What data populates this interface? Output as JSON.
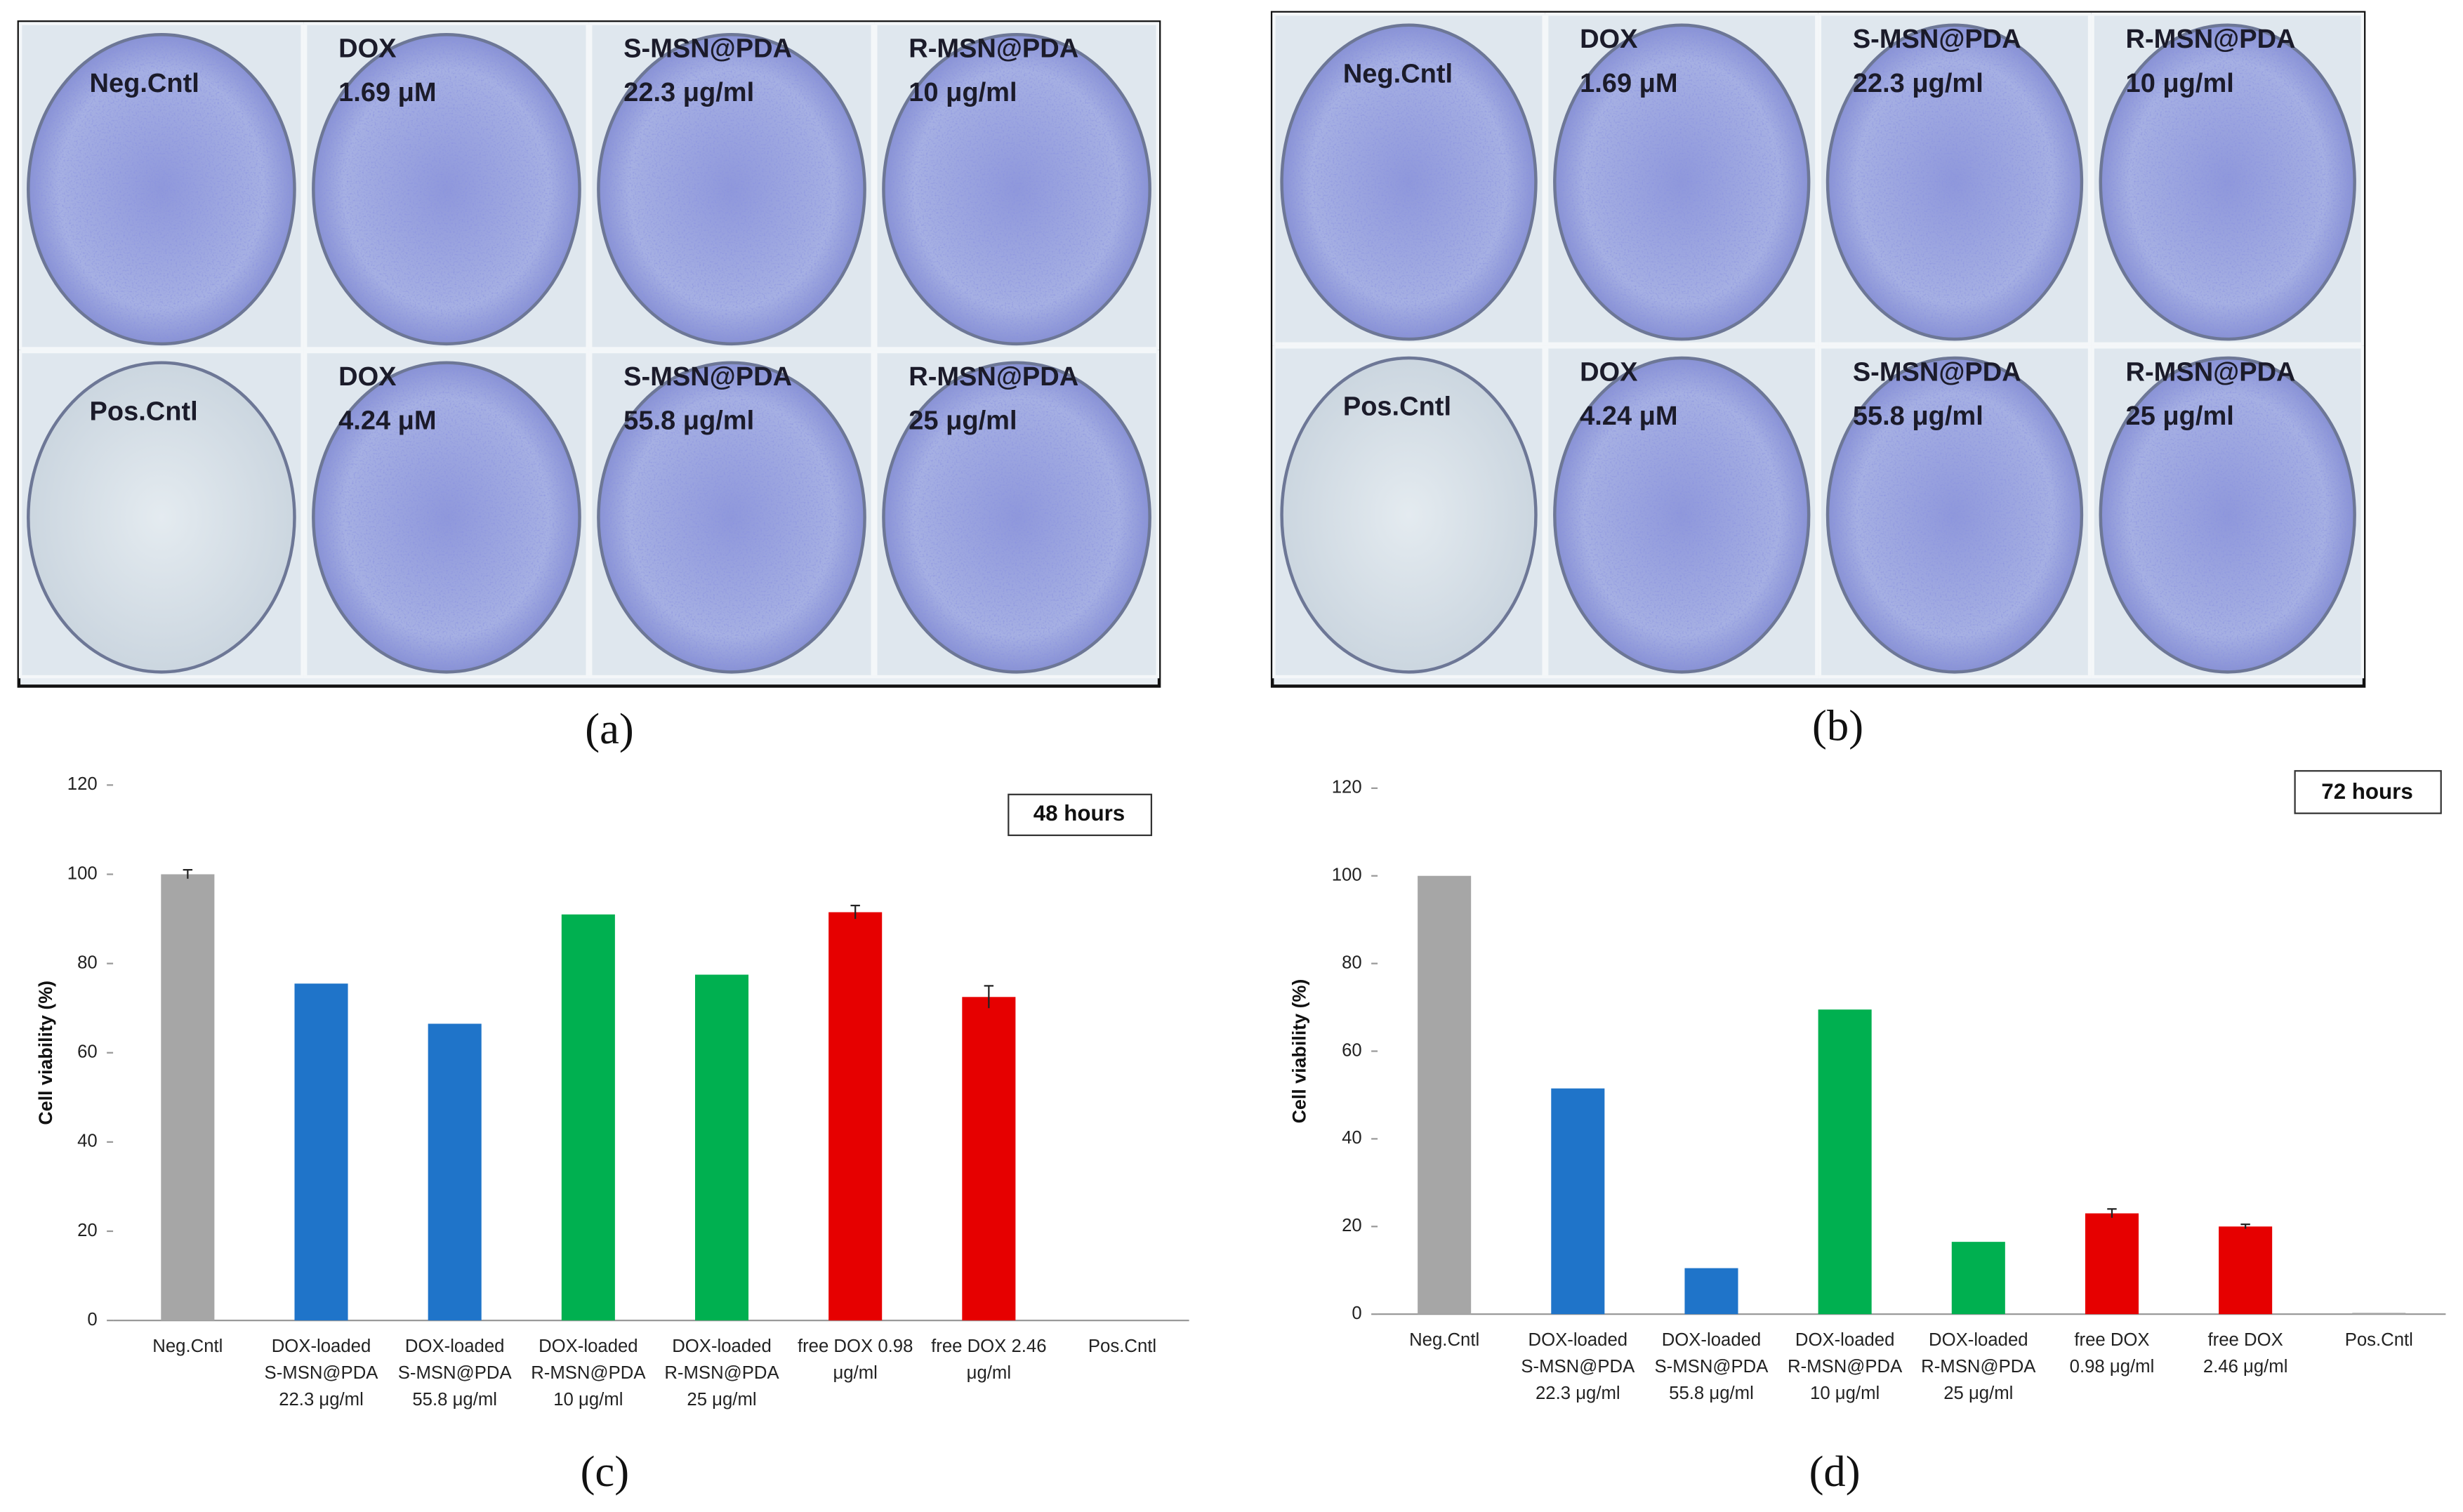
{
  "photos": [
    {
      "caption": "(a)",
      "wells": [
        "Neg.Cntl",
        "DOX\n1.69 μM",
        "S-MSN@PDA\n22.3 μg/ml",
        "R-MSN@PDA\n10 μg/ml",
        "Pos.Cntl",
        "DOX\n4.24 μM",
        "S-MSN@PDA\n55.8 μg/ml",
        "R-MSN@PDA\n25 μg/ml"
      ]
    },
    {
      "caption": "(b)",
      "wells": [
        "Neg.Cntl",
        "DOX\n1.69 μM",
        "S-MSN@PDA\n22.3 μg/ml",
        "R-MSN@PDA\n10 μg/ml",
        "Pos.Cntl",
        "DOX\n4.24 μM",
        "S-MSN@PDA\n55.8 μg/ml",
        "R-MSN@PDA\n25 μg/ml"
      ]
    }
  ],
  "chart_data": [
    {
      "type": "bar",
      "caption": "(c)",
      "annotation": "48 hours",
      "ylabel": "Cell viability (%)",
      "categories": [
        "Neg.Cntl",
        "DOX-loaded\nS-MSN@PDA\n22.3 μg/ml",
        "DOX-loaded\nS-MSN@PDA\n55.8 μg/ml",
        "DOX-loaded\nR-MSN@PDA\n10 μg/ml",
        "DOX-loaded\nR-MSN@PDA\n25 μg/ml",
        "free DOX 0.98\nμg/ml",
        "free DOX 2.46\nμg/ml",
        "Pos.Cntl"
      ],
      "values": [
        100,
        75.5,
        66.5,
        91,
        77.5,
        91.5,
        72.5,
        0
      ],
      "errors": [
        1,
        null,
        null,
        null,
        null,
        1.5,
        2.5,
        null
      ],
      "colors": [
        "#a6a6a6",
        "#1f74c9",
        "#1f74c9",
        "#00b050",
        "#00b050",
        "#e60000",
        "#e60000",
        "#a6a6a6"
      ],
      "ylim": [
        0,
        120
      ],
      "yticks": [
        0,
        20,
        40,
        60,
        80,
        100,
        120
      ]
    },
    {
      "type": "bar",
      "caption": "(d)",
      "annotation": "72 hours",
      "ylabel": "Cell viability (%)",
      "categories": [
        "Neg.Cntl",
        "DOX-loaded\nS-MSN@PDA\n22.3 μg/ml",
        "DOX-loaded\nS-MSN@PDA\n55.8 μg/ml",
        "DOX-loaded\nR-MSN@PDA\n10 μg/ml",
        "DOX-loaded\nR-MSN@PDA\n25 μg/ml",
        "free DOX\n0.98 μg/ml",
        "free DOX\n2.46 μg/ml",
        "Pos.Cntl"
      ],
      "values": [
        100,
        51.5,
        10.5,
        69.5,
        16.5,
        23,
        20,
        0.3
      ],
      "errors": [
        null,
        null,
        null,
        null,
        null,
        1,
        0.5,
        null
      ],
      "colors": [
        "#a6a6a6",
        "#1f74c9",
        "#1f74c9",
        "#00b050",
        "#00b050",
        "#e60000",
        "#e60000",
        "#a6a6a6"
      ],
      "ylim": [
        0,
        120
      ],
      "yticks": [
        0,
        20,
        40,
        60,
        80,
        100,
        120
      ]
    }
  ]
}
